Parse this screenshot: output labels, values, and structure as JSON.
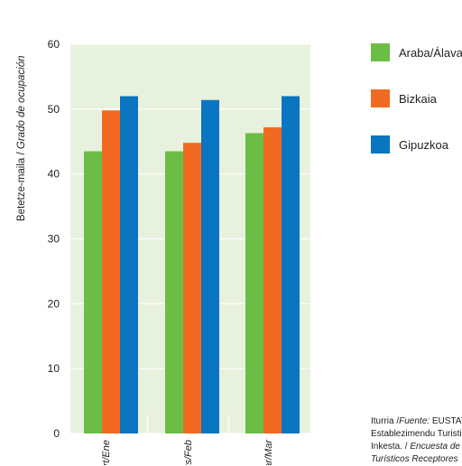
{
  "chart_data": {
    "type": "bar",
    "categories": [
      "Urt/Ene",
      "Ots/Feb",
      "Mar/Mar"
    ],
    "series": [
      {
        "name": "Araba/Álava",
        "color": "#6cbd45",
        "values": [
          43.5,
          43.5,
          46.3
        ]
      },
      {
        "name": "Bizkaia",
        "color": "#f26a21",
        "values": [
          49.8,
          44.8,
          47.2
        ]
      },
      {
        "name": "Gipuzkoa",
        "color": "#0a75c0",
        "values": [
          52.0,
          51.4,
          52.0
        ]
      }
    ],
    "ylabel_main": "Betetze-maila / ",
    "ylabel_italic": "Grado de ocupación",
    "ylim": [
      0,
      60
    ],
    "yticks": [
      0,
      10,
      20,
      30,
      40,
      50,
      60
    ],
    "grid": true,
    "plot_background": "#e8f1dd",
    "legend_position": "right"
  },
  "source": {
    "line1_prefix": "Iturria /",
    "line1_italic": "Fuente:",
    "line1_rest": " EUSTAT.",
    "line2": "Establezimendu Turistikoen",
    "line3_main": "Inkesta. / ",
    "line3_italic": "Encuesta de",
    "line4_italic": "Turísticos Receptores"
  }
}
